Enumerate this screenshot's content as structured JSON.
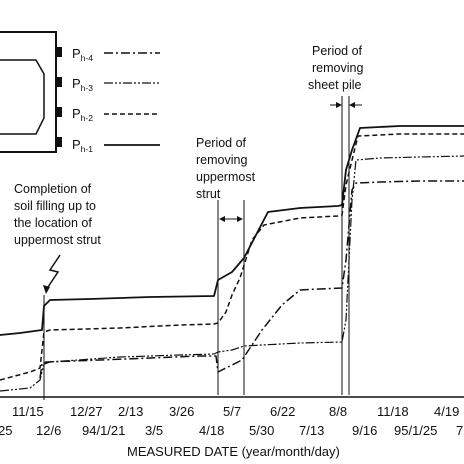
{
  "chart_data": {
    "type": "line",
    "xlabel": "MEASURED DATE (year/month/day)",
    "ylabel": "",
    "grid": false,
    "legend_position": "top-left",
    "x_ticks_row1": [
      "11/15",
      "12/27",
      "2/13",
      "3/26",
      "5/7",
      "6/22",
      "8/8",
      "11/18",
      "4/19"
    ],
    "x_ticks_row2": [
      "25",
      "12/6",
      "94/1/21",
      "3/5",
      "4/18",
      "5/30",
      "7/13",
      "9/16",
      "95/1/25",
      "7"
    ],
    "series": [
      {
        "name": "Ph-4",
        "style": "dash-dot",
        "points": [
          [
            40,
            378
          ],
          [
            42,
            364
          ],
          [
            46,
            362
          ],
          [
            100,
            360
          ],
          [
            150,
            358
          ],
          [
            200,
            356
          ],
          [
            216,
            356
          ],
          [
            218,
            372
          ],
          [
            226,
            368
          ],
          [
            242,
            360
          ],
          [
            262,
            330
          ],
          [
            282,
            305
          ],
          [
            300,
            290
          ],
          [
            320,
            289
          ],
          [
            342,
            288
          ],
          [
            346,
            260
          ],
          [
            352,
            190
          ],
          [
            356,
            183
          ],
          [
            380,
            182
          ],
          [
            420,
            181
          ],
          [
            464,
            181
          ]
        ]
      },
      {
        "name": "Ph-3",
        "style": "dash-dot-dot",
        "points": [
          [
            0,
            391
          ],
          [
            30,
            388
          ],
          [
            40,
            380
          ],
          [
            44,
            364
          ],
          [
            50,
            362
          ],
          [
            120,
            357
          ],
          [
            180,
            355
          ],
          [
            214,
            354
          ],
          [
            218,
            352
          ],
          [
            232,
            350
          ],
          [
            244,
            346
          ],
          [
            262,
            345
          ],
          [
            300,
            343
          ],
          [
            342,
            342
          ],
          [
            346,
            320
          ],
          [
            352,
            200
          ],
          [
            356,
            160
          ],
          [
            380,
            158
          ],
          [
            420,
            157
          ],
          [
            464,
            156
          ]
        ]
      },
      {
        "name": "Ph-2",
        "style": "dashed",
        "points": [
          [
            0,
            380
          ],
          [
            30,
            372
          ],
          [
            40,
            368
          ],
          [
            44,
            332
          ],
          [
            50,
            330
          ],
          [
            120,
            328
          ],
          [
            180,
            325
          ],
          [
            214,
            324
          ],
          [
            218,
            323
          ],
          [
            226,
            312
          ],
          [
            232,
            295
          ],
          [
            240,
            278
          ],
          [
            252,
            240
          ],
          [
            264,
            225
          ],
          [
            300,
            218
          ],
          [
            338,
            216
          ],
          [
            342,
            215
          ],
          [
            346,
            185
          ],
          [
            352,
            160
          ],
          [
            358,
            136
          ],
          [
            400,
            134
          ],
          [
            464,
            134
          ]
        ]
      },
      {
        "name": "Ph-1",
        "style": "solid",
        "points": [
          [
            0,
            335
          ],
          [
            20,
            333
          ],
          [
            42,
            330
          ],
          [
            44,
            306
          ],
          [
            50,
            300
          ],
          [
            90,
            299
          ],
          [
            150,
            297
          ],
          [
            214,
            296
          ],
          [
            218,
            280
          ],
          [
            232,
            272
          ],
          [
            244,
            258
          ],
          [
            268,
            212
          ],
          [
            300,
            208
          ],
          [
            338,
            206
          ],
          [
            342,
            205
          ],
          [
            346,
            170
          ],
          [
            352,
            150
          ],
          [
            360,
            128
          ],
          [
            400,
            126
          ],
          [
            464,
            126
          ]
        ]
      }
    ],
    "annotations": {
      "completion": [
        "Completion of",
        "soil filling up to",
        "the location of",
        "uppermost strut"
      ],
      "strut": [
        "Period of",
        "removing",
        "uppermost",
        "strut"
      ],
      "sheet": [
        "Period of",
        "removing",
        "sheet pile"
      ]
    },
    "legend": {
      "labels": [
        {
          "main": "P",
          "sub": "h-4"
        },
        {
          "main": "P",
          "sub": "h-3"
        },
        {
          "main": "P",
          "sub": "h-2"
        },
        {
          "main": "P",
          "sub": "h-1"
        }
      ]
    }
  }
}
